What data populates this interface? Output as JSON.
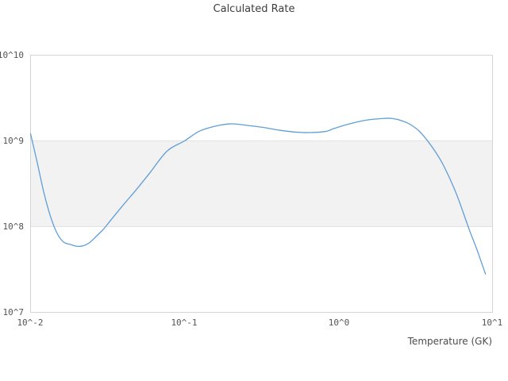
{
  "title": "Calculated Rate",
  "chart_data": {
    "type": "line",
    "title": "Calculated Rate",
    "xlabel": "Temperature (GK)",
    "ylabel": "",
    "x_scale": "log",
    "y_scale": "log",
    "xlim": [
      0.01,
      10
    ],
    "ylim": [
      10000000.0,
      10000000000.0
    ],
    "x_tick_labels": [
      "10^-2",
      "10^-1",
      "10^0",
      "10^1"
    ],
    "y_tick_labels": [
      "10^10",
      "10^9",
      "10^8",
      "10^7"
    ],
    "grid": "horizontal gridlines at y decades only",
    "legend": "none",
    "y_band": {
      "from": 100000000.0,
      "to": 1000000000.0,
      "color": "#f2f2f2"
    },
    "series": [
      {
        "name": "Calculated Rate",
        "color": "#5f9ed7",
        "x": [
          0.01,
          0.011,
          0.0122,
          0.0135,
          0.0149,
          0.0164,
          0.0181,
          0.02,
          0.0221,
          0.0244,
          0.0269,
          0.0297,
          0.0327,
          0.0399,
          0.0486,
          0.0593,
          0.077,
          0.1,
          0.124,
          0.157,
          0.199,
          0.252,
          0.32,
          0.406,
          0.514,
          0.65,
          0.827,
          0.93,
          1.18,
          1.5,
          1.9,
          2.21,
          2.62,
          3.05,
          3.56,
          4.52,
          5.33,
          6.0,
          7.08,
          7.89,
          9.0
        ],
        "y": [
          1210000000.0,
          580000000.0,
          250000000.0,
          130000000.0,
          83000000.0,
          66000000.0,
          62000000.0,
          59000000.0,
          60000000.0,
          66000000.0,
          78000000.0,
          93000000.0,
          115000000.0,
          178000000.0,
          270000000.0,
          420000000.0,
          760000000.0,
          1000000000.0,
          1290000000.0,
          1480000000.0,
          1580000000.0,
          1520000000.0,
          1440000000.0,
          1340000000.0,
          1270000000.0,
          1250000000.0,
          1290000000.0,
          1390000000.0,
          1580000000.0,
          1740000000.0,
          1820000000.0,
          1830000000.0,
          1700000000.0,
          1480000000.0,
          1150000000.0,
          630000000.0,
          350000000.0,
          210000000.0,
          91000000.0,
          55000000.0,
          28000000.0
        ]
      }
    ]
  },
  "colors": {
    "line": "#5f9ed7",
    "band": "#f2f2f2",
    "gridline": "#e2e2e2",
    "plot_border": "#d4d4d4",
    "tick_text": "#555555",
    "title_text": "#3d3d3d"
  }
}
